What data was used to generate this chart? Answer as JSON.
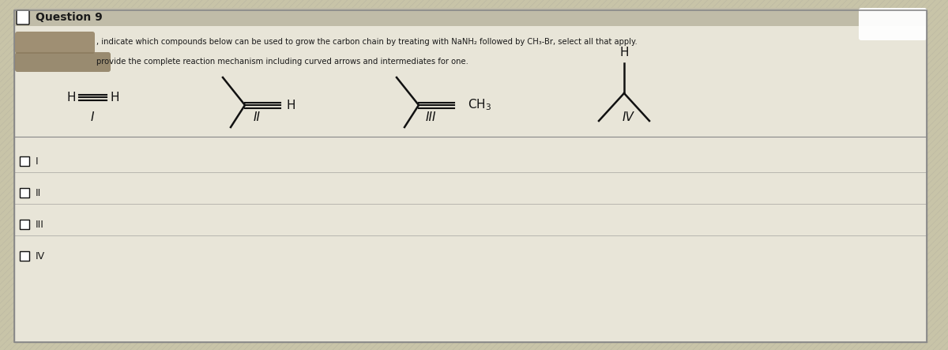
{
  "title": "Question 9",
  "question_text_line1": ", indicate which compounds below can be used to grow the carbon chain by treating with NaNH₂ followed by CH₃-Br, select all that apply.",
  "question_text_line2": "provide the complete reaction mechanism including curved arrows and intermediates for one.",
  "bg_color": "#c8c4a8",
  "panel_bg": "#dedad0",
  "title_bg": "#c0bca8",
  "content_bg": "#e8e5d8",
  "text_color": "#1a1a1a",
  "line_color": "#111111",
  "border_color": "#888888",
  "stripe_color": "#b8b4a0",
  "checkbox_row_bg": "#d8d5c8"
}
